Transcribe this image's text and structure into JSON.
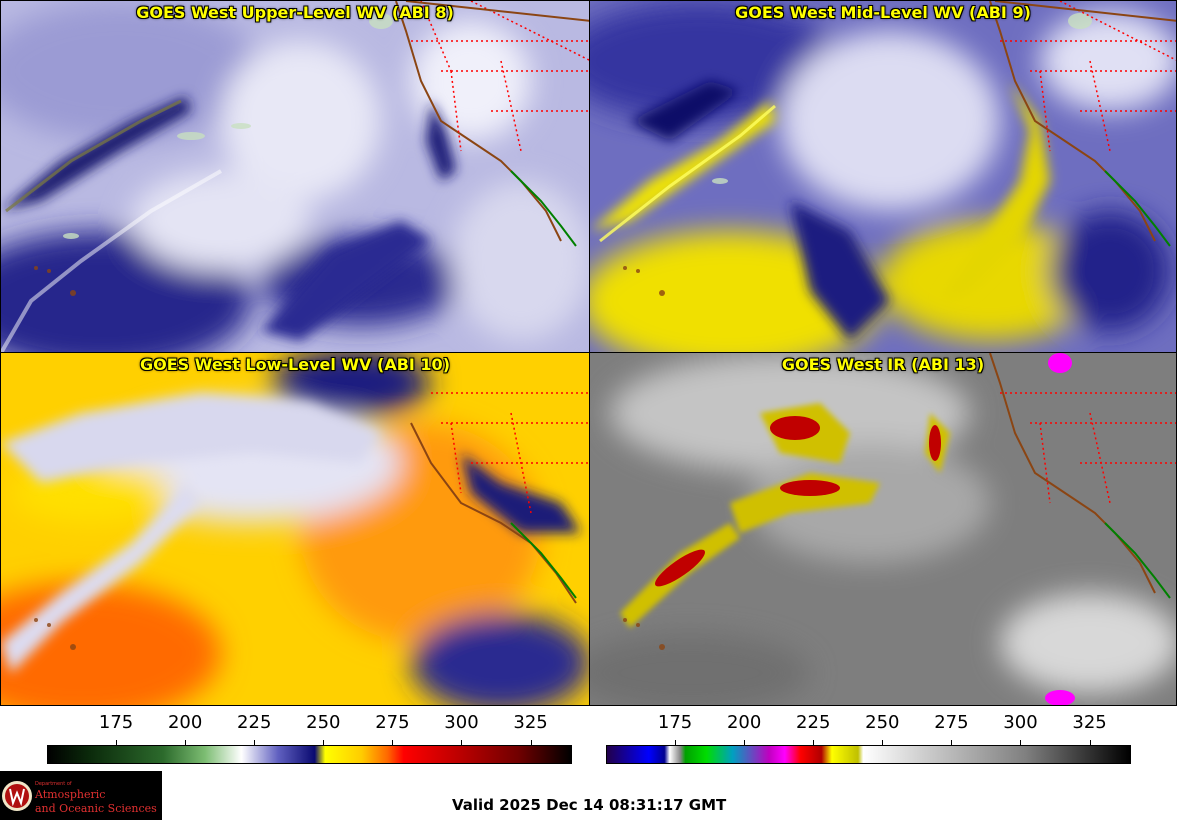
{
  "panels": {
    "upper": {
      "title": "GOES West Upper-Level WV (ABI 8)"
    },
    "mid": {
      "title": "GOES West Mid-Level WV (ABI 9)"
    },
    "low": {
      "title": "GOES West Low-Level WV (ABI 10)"
    },
    "ir": {
      "title": "GOES West IR (ABI 13)"
    }
  },
  "colorbars": {
    "wv": {
      "ticks": [
        "175",
        "200",
        "225",
        "250",
        "275",
        "300",
        "325"
      ],
      "range": [
        150,
        340
      ]
    },
    "ir": {
      "ticks": [
        "175",
        "200",
        "225",
        "250",
        "275",
        "300",
        "325"
      ],
      "range": [
        150,
        340
      ]
    }
  },
  "logo": {
    "dept_line1": "Department of",
    "line1": "Atmospheric",
    "line2": "and Oceanic Sciences",
    "icon": "university-crest-icon"
  },
  "footer": {
    "valid_time": "Valid 2025 Dec 14 08:31:17 GMT"
  },
  "colors": {
    "title": "#ffff00",
    "coastline": "#8b4513",
    "mexico_border": "#008000",
    "state_lines": "#ff0000"
  }
}
